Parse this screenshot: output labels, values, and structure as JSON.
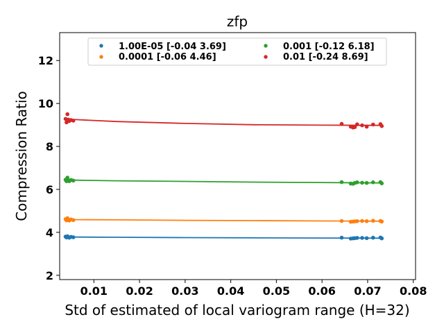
{
  "chart_data": {
    "type": "scatter",
    "title": "zfp",
    "xlabel": "Std of estimated of local variogram range (H=32)",
    "ylabel": "Compression Ratio",
    "xlim": [
      0.0025,
      0.0805
    ],
    "ylim": [
      1.8,
      13.3
    ],
    "xticks": [
      0.01,
      0.02,
      0.03,
      0.04,
      0.05,
      0.06,
      0.07,
      0.08
    ],
    "xtick_labels": [
      "0.01",
      "0.02",
      "0.03",
      "0.04",
      "0.05",
      "0.06",
      "0.07",
      "0.08"
    ],
    "yticks": [
      2,
      4,
      6,
      8,
      10,
      12
    ],
    "ytick_labels": [
      "2",
      "4",
      "6",
      "8",
      "10",
      "12"
    ],
    "legend_location": "upper-center",
    "legend_columns": 2,
    "series": [
      {
        "name": "1.00E-05 [-0.04  3.69]",
        "color": "#1f77b4",
        "fit_points": [
          [
            0.0035,
            3.79
          ],
          [
            0.006,
            3.78
          ],
          [
            0.015,
            3.77
          ],
          [
            0.03,
            3.755
          ],
          [
            0.045,
            3.745
          ],
          [
            0.06,
            3.735
          ],
          [
            0.073,
            3.73
          ]
        ],
        "points": [
          [
            0.0038,
            3.8
          ],
          [
            0.004,
            3.76
          ],
          [
            0.0042,
            3.82
          ],
          [
            0.0044,
            3.78
          ],
          [
            0.0046,
            3.75
          ],
          [
            0.005,
            3.79
          ],
          [
            0.0055,
            3.77
          ],
          [
            0.0643,
            3.75
          ],
          [
            0.0663,
            3.71
          ],
          [
            0.0668,
            3.72
          ],
          [
            0.0672,
            3.73
          ],
          [
            0.0677,
            3.74
          ],
          [
            0.0688,
            3.74
          ],
          [
            0.0698,
            3.73
          ],
          [
            0.0712,
            3.75
          ],
          [
            0.0728,
            3.76
          ],
          [
            0.0731,
            3.72
          ]
        ]
      },
      {
        "name": "0.0001 [-0.06  4.46]",
        "color": "#ff7f0e",
        "fit_points": [
          [
            0.0035,
            4.6
          ],
          [
            0.006,
            4.59
          ],
          [
            0.015,
            4.58
          ],
          [
            0.03,
            4.56
          ],
          [
            0.045,
            4.545
          ],
          [
            0.06,
            4.53
          ],
          [
            0.073,
            4.52
          ]
        ],
        "points": [
          [
            0.0038,
            4.61
          ],
          [
            0.004,
            4.56
          ],
          [
            0.0042,
            4.66
          ],
          [
            0.0044,
            4.58
          ],
          [
            0.0046,
            4.55
          ],
          [
            0.005,
            4.6
          ],
          [
            0.0055,
            4.57
          ],
          [
            0.0643,
            4.53
          ],
          [
            0.0663,
            4.49
          ],
          [
            0.0668,
            4.5
          ],
          [
            0.0672,
            4.51
          ],
          [
            0.0677,
            4.52
          ],
          [
            0.0688,
            4.53
          ],
          [
            0.0698,
            4.52
          ],
          [
            0.0712,
            4.54
          ],
          [
            0.0728,
            4.53
          ],
          [
            0.0731,
            4.5
          ]
        ]
      },
      {
        "name": "0.001 [-0.12  6.18]",
        "color": "#2ca02c",
        "fit_points": [
          [
            0.0035,
            6.44
          ],
          [
            0.006,
            6.43
          ],
          [
            0.015,
            6.4
          ],
          [
            0.03,
            6.37
          ],
          [
            0.045,
            6.34
          ],
          [
            0.06,
            6.32
          ],
          [
            0.073,
            6.3
          ]
        ],
        "points": [
          [
            0.0038,
            6.45
          ],
          [
            0.004,
            6.38
          ],
          [
            0.0042,
            6.55
          ],
          [
            0.0044,
            6.42
          ],
          [
            0.0046,
            6.38
          ],
          [
            0.005,
            6.44
          ],
          [
            0.0055,
            6.41
          ],
          [
            0.0643,
            6.34
          ],
          [
            0.0663,
            6.27
          ],
          [
            0.0668,
            6.26
          ],
          [
            0.0672,
            6.3
          ],
          [
            0.0677,
            6.33
          ],
          [
            0.0688,
            6.31
          ],
          [
            0.0698,
            6.3
          ],
          [
            0.0712,
            6.33
          ],
          [
            0.0728,
            6.34
          ],
          [
            0.0731,
            6.28
          ]
        ]
      },
      {
        "name": "0.01 [-0.24  8.69]",
        "color": "#d62728",
        "fit_points": [
          [
            0.0035,
            9.28
          ],
          [
            0.006,
            9.25
          ],
          [
            0.015,
            9.16
          ],
          [
            0.03,
            9.07
          ],
          [
            0.045,
            9.01
          ],
          [
            0.06,
            8.99
          ],
          [
            0.073,
            8.98
          ]
        ],
        "points": [
          [
            0.0038,
            9.28
          ],
          [
            0.004,
            9.12
          ],
          [
            0.0042,
            9.5
          ],
          [
            0.0044,
            9.25
          ],
          [
            0.0046,
            9.18
          ],
          [
            0.005,
            9.23
          ],
          [
            0.0055,
            9.2
          ],
          [
            0.0643,
            9.05
          ],
          [
            0.0663,
            8.92
          ],
          [
            0.0668,
            8.88
          ],
          [
            0.0672,
            8.9
          ],
          [
            0.0677,
            9.03
          ],
          [
            0.0688,
            8.98
          ],
          [
            0.0698,
            8.92
          ],
          [
            0.0712,
            9.02
          ],
          [
            0.0728,
            9.04
          ],
          [
            0.0731,
            8.95
          ]
        ]
      }
    ]
  }
}
